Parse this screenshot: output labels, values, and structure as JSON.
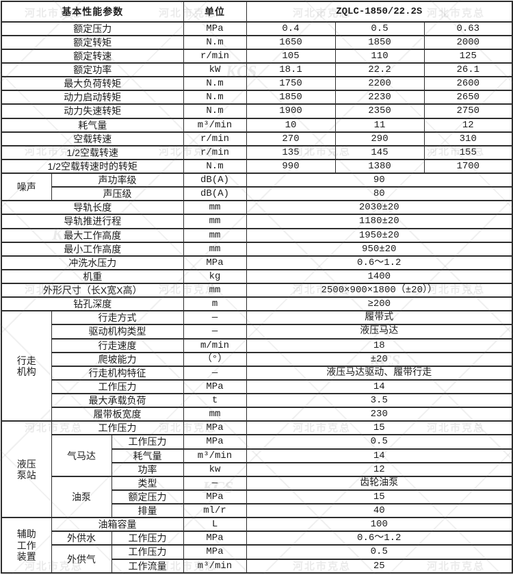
{
  "title": "ZQLC-1850/22.2S",
  "colors": {
    "border": "#2d2d2d",
    "text": "#1c1c1c",
    "watermark_gray": "#8c8c8c",
    "background": "#ffffff"
  },
  "watermark": {
    "text": "河北市克总",
    "logo": "KCS"
  },
  "table": {
    "rows": [
      {
        "cells": [
          {
            "text": "基本性能参数",
            "colspan": 3,
            "kind": "header",
            "name": "col-header-parameters"
          },
          {
            "text": "单位",
            "kind": "header",
            "name": "col-header-unit"
          },
          {
            "text": "ZQLC-1850/22.2S",
            "colspan": 3,
            "kind": "model",
            "name": "model-header"
          }
        ]
      },
      {
        "cells": [
          {
            "text": "额定压力",
            "colspan": 3,
            "kind": "param"
          },
          {
            "text": "MPa",
            "kind": "unit"
          },
          {
            "text": "0.4",
            "kind": "value"
          },
          {
            "text": "0.5",
            "kind": "value"
          },
          {
            "text": "0.63",
            "kind": "value"
          }
        ]
      },
      {
        "cells": [
          {
            "text": "额定转矩",
            "colspan": 3,
            "kind": "param"
          },
          {
            "text": "N.m",
            "kind": "unit"
          },
          {
            "text": "1650",
            "kind": "value"
          },
          {
            "text": "1850",
            "kind": "value"
          },
          {
            "text": "2000",
            "kind": "value"
          }
        ]
      },
      {
        "cells": [
          {
            "text": "额定转速",
            "colspan": 3,
            "kind": "param"
          },
          {
            "text": "r/min",
            "kind": "unit"
          },
          {
            "text": "105",
            "kind": "value"
          },
          {
            "text": "110",
            "kind": "value"
          },
          {
            "text": "125",
            "kind": "value"
          }
        ]
      },
      {
        "cells": [
          {
            "text": "额定功率",
            "colspan": 3,
            "kind": "param"
          },
          {
            "text": "kW",
            "kind": "unit"
          },
          {
            "text": "18.1",
            "kind": "value"
          },
          {
            "text": "22.2",
            "kind": "value"
          },
          {
            "text": "26.1",
            "kind": "value"
          }
        ]
      },
      {
        "cells": [
          {
            "text": "最大负荷转矩",
            "colspan": 3,
            "kind": "param"
          },
          {
            "text": "N.m",
            "kind": "unit"
          },
          {
            "text": "1750",
            "kind": "value"
          },
          {
            "text": "2200",
            "kind": "value"
          },
          {
            "text": "2600",
            "kind": "value"
          }
        ]
      },
      {
        "cells": [
          {
            "text": "动力启动转矩",
            "colspan": 3,
            "kind": "param"
          },
          {
            "text": "N.m",
            "kind": "unit"
          },
          {
            "text": "1850",
            "kind": "value"
          },
          {
            "text": "2230",
            "kind": "value"
          },
          {
            "text": "2650",
            "kind": "value"
          }
        ]
      },
      {
        "cells": [
          {
            "text": "动力失速转矩",
            "colspan": 3,
            "kind": "param"
          },
          {
            "text": "N.m",
            "kind": "unit"
          },
          {
            "text": "1900",
            "kind": "value"
          },
          {
            "text": "2350",
            "kind": "value"
          },
          {
            "text": "2750",
            "kind": "value"
          }
        ]
      },
      {
        "cells": [
          {
            "text": "耗气量",
            "colspan": 3,
            "kind": "param"
          },
          {
            "text": "m³/min",
            "kind": "unit"
          },
          {
            "text": "10",
            "kind": "value"
          },
          {
            "text": "11",
            "kind": "value"
          },
          {
            "text": "12",
            "kind": "value"
          }
        ]
      },
      {
        "cells": [
          {
            "text": "空载转速",
            "colspan": 3,
            "kind": "param"
          },
          {
            "text": "r/min",
            "kind": "unit"
          },
          {
            "text": "270",
            "kind": "value"
          },
          {
            "text": "290",
            "kind": "value"
          },
          {
            "text": "310",
            "kind": "value"
          }
        ]
      },
      {
        "cells": [
          {
            "text": "1/2空载转速",
            "colspan": 3,
            "kind": "param"
          },
          {
            "text": "r/min",
            "kind": "unit"
          },
          {
            "text": "135",
            "kind": "value"
          },
          {
            "text": "145",
            "kind": "value"
          },
          {
            "text": "155",
            "kind": "value"
          }
        ]
      },
      {
        "cells": [
          {
            "text": "1/2空载转速时的转矩",
            "colspan": 3,
            "kind": "param"
          },
          {
            "text": "N.m",
            "kind": "unit"
          },
          {
            "text": "990",
            "kind": "value"
          },
          {
            "text": "1380",
            "kind": "value"
          },
          {
            "text": "1700",
            "kind": "value"
          }
        ]
      },
      {
        "cells": [
          {
            "text": "噪声",
            "rowspan": 2,
            "kind": "group",
            "name": "group-label-noise"
          },
          {
            "text": "声功率级",
            "colspan": 2,
            "kind": "param"
          },
          {
            "text": "dB(A)",
            "kind": "unit"
          },
          {
            "text": "90",
            "colspan": 3,
            "kind": "value"
          }
        ]
      },
      {
        "cells": [
          {
            "text": "声压级",
            "colspan": 2,
            "kind": "param"
          },
          {
            "text": "dB(A)",
            "kind": "unit"
          },
          {
            "text": "80",
            "colspan": 3,
            "kind": "value"
          }
        ]
      },
      {
        "cells": [
          {
            "text": "导轨长度",
            "colspan": 3,
            "kind": "param"
          },
          {
            "text": "mm",
            "kind": "unit"
          },
          {
            "text": "2030±20",
            "colspan": 3,
            "kind": "value"
          }
        ]
      },
      {
        "cells": [
          {
            "text": "导轨推进行程",
            "colspan": 3,
            "kind": "param"
          },
          {
            "text": "mm",
            "kind": "unit"
          },
          {
            "text": "1180±20",
            "colspan": 3,
            "kind": "value"
          }
        ]
      },
      {
        "cells": [
          {
            "text": "最大工作高度",
            "colspan": 3,
            "kind": "param"
          },
          {
            "text": "mm",
            "kind": "unit"
          },
          {
            "text": "1950±20",
            "colspan": 3,
            "kind": "value"
          }
        ]
      },
      {
        "cells": [
          {
            "text": "最小工作高度",
            "colspan": 3,
            "kind": "param"
          },
          {
            "text": "mm",
            "kind": "unit"
          },
          {
            "text": "950±20",
            "colspan": 3,
            "kind": "value"
          }
        ]
      },
      {
        "cells": [
          {
            "text": "冲洗水压力",
            "colspan": 3,
            "kind": "param"
          },
          {
            "text": "MPa",
            "kind": "unit"
          },
          {
            "text": "0.6～1.2",
            "colspan": 3,
            "kind": "value"
          }
        ]
      },
      {
        "cells": [
          {
            "text": "机重",
            "colspan": 3,
            "kind": "param"
          },
          {
            "text": "kg",
            "kind": "unit"
          },
          {
            "text": "1400",
            "colspan": 3,
            "kind": "value"
          }
        ]
      },
      {
        "cells": [
          {
            "text": "外形尺寸（长X宽X高）",
            "colspan": 3,
            "kind": "param"
          },
          {
            "text": "mm",
            "kind": "unit"
          },
          {
            "text": "2500×900×1800（±20））",
            "colspan": 3,
            "kind": "value"
          }
        ]
      },
      {
        "cells": [
          {
            "text": "钻孔深度",
            "colspan": 3,
            "kind": "param"
          },
          {
            "text": "m",
            "kind": "unit"
          },
          {
            "text": "≥200",
            "colspan": 3,
            "kind": "value"
          }
        ]
      },
      {
        "cells": [
          {
            "text": "行走\n机构",
            "rowspan": 8,
            "kind": "group",
            "name": "group-label-travel-mechanism"
          },
          {
            "text": "行走方式",
            "colspan": 2,
            "kind": "param"
          },
          {
            "text": "—",
            "kind": "unit"
          },
          {
            "text": "履带式",
            "colspan": 3,
            "kind": "value"
          }
        ]
      },
      {
        "cells": [
          {
            "text": "驱动机构类型",
            "colspan": 2,
            "kind": "param"
          },
          {
            "text": "—",
            "kind": "unit"
          },
          {
            "text": "液压马达",
            "colspan": 3,
            "kind": "value"
          }
        ]
      },
      {
        "cells": [
          {
            "text": "行走速度",
            "colspan": 2,
            "kind": "param"
          },
          {
            "text": "m/min",
            "kind": "unit"
          },
          {
            "text": "18",
            "colspan": 3,
            "kind": "value"
          }
        ]
      },
      {
        "cells": [
          {
            "text": "爬坡能力",
            "colspan": 2,
            "kind": "param"
          },
          {
            "text": "（°）",
            "kind": "unit"
          },
          {
            "text": "±20",
            "colspan": 3,
            "kind": "value"
          }
        ]
      },
      {
        "cells": [
          {
            "text": "行走机构特征",
            "colspan": 2,
            "kind": "param"
          },
          {
            "text": "—",
            "kind": "unit"
          },
          {
            "text": "液压马达驱动、履带行走",
            "colspan": 3,
            "kind": "value"
          }
        ]
      },
      {
        "cells": [
          {
            "text": "工作压力",
            "colspan": 2,
            "kind": "param"
          },
          {
            "text": "MPa",
            "kind": "unit"
          },
          {
            "text": "14",
            "colspan": 3,
            "kind": "value"
          }
        ]
      },
      {
        "cells": [
          {
            "text": "最大承载负荷",
            "colspan": 2,
            "kind": "param"
          },
          {
            "text": "t",
            "kind": "unit"
          },
          {
            "text": "3.5",
            "colspan": 3,
            "kind": "value"
          }
        ]
      },
      {
        "cells": [
          {
            "text": "履带板宽度",
            "colspan": 2,
            "kind": "param"
          },
          {
            "text": "mm",
            "kind": "unit"
          },
          {
            "text": "230",
            "colspan": 3,
            "kind": "value"
          }
        ]
      },
      {
        "cells": [
          {
            "text": "液压\n泵站",
            "rowspan": 7,
            "kind": "group",
            "name": "group-label-hydraulic-pump-station"
          },
          {
            "text": "工作压力",
            "colspan": 2,
            "kind": "param"
          },
          {
            "text": "MPa",
            "kind": "unit"
          },
          {
            "text": "15",
            "colspan": 3,
            "kind": "value"
          }
        ]
      },
      {
        "cells": [
          {
            "text": "气马达",
            "rowspan": 3,
            "kind": "subgroup",
            "name": "subgroup-label-air-motor"
          },
          {
            "text": "工作压力",
            "kind": "param"
          },
          {
            "text": "MPa",
            "kind": "unit"
          },
          {
            "text": "0.5",
            "colspan": 3,
            "kind": "value"
          }
        ]
      },
      {
        "cells": [
          {
            "text": "耗气量",
            "kind": "param"
          },
          {
            "text": "m³/min",
            "kind": "unit"
          },
          {
            "text": "14",
            "colspan": 3,
            "kind": "value"
          }
        ]
      },
      {
        "cells": [
          {
            "text": "功率",
            "kind": "param"
          },
          {
            "text": "kw",
            "kind": "unit"
          },
          {
            "text": "12",
            "colspan": 3,
            "kind": "value"
          }
        ]
      },
      {
        "cells": [
          {
            "text": "油泵",
            "rowspan": 3,
            "kind": "subgroup",
            "name": "subgroup-label-oil-pump"
          },
          {
            "text": "类型",
            "kind": "param"
          },
          {
            "text": "—",
            "kind": "unit"
          },
          {
            "text": "齿轮油泵",
            "colspan": 3,
            "kind": "value"
          }
        ]
      },
      {
        "cells": [
          {
            "text": "额定压力",
            "kind": "param"
          },
          {
            "text": "MPa",
            "kind": "unit"
          },
          {
            "text": "15",
            "colspan": 3,
            "kind": "value"
          }
        ]
      },
      {
        "cells": [
          {
            "text": "排量",
            "kind": "param"
          },
          {
            "text": "ml/r",
            "kind": "unit"
          },
          {
            "text": "40",
            "colspan": 3,
            "kind": "value"
          }
        ]
      },
      {
        "cells": [
          {
            "text": "辅助\n工作\n装置",
            "rowspan": 4,
            "kind": "group",
            "name": "group-label-auxiliary-device"
          },
          {
            "text": "油箱容量",
            "colspan": 2,
            "kind": "param"
          },
          {
            "text": "L",
            "kind": "unit"
          },
          {
            "text": "100",
            "colspan": 3,
            "kind": "value"
          }
        ]
      },
      {
        "cells": [
          {
            "text": "外供水",
            "kind": "subgroup",
            "name": "subgroup-label-external-water"
          },
          {
            "text": "工作压力",
            "kind": "param"
          },
          {
            "text": "MPa",
            "kind": "unit"
          },
          {
            "text": "0.6～1.2",
            "colspan": 3,
            "kind": "value"
          }
        ]
      },
      {
        "cells": [
          {
            "text": "外供气",
            "rowspan": 2,
            "kind": "subgroup",
            "name": "subgroup-label-external-air"
          },
          {
            "text": "工作压力",
            "kind": "param"
          },
          {
            "text": "MPa",
            "kind": "unit"
          },
          {
            "text": "0.5",
            "colspan": 3,
            "kind": "value"
          }
        ]
      },
      {
        "cells": [
          {
            "text": "工作流量",
            "kind": "param"
          },
          {
            "text": "m³/min",
            "kind": "unit"
          },
          {
            "text": "25",
            "colspan": 3,
            "kind": "value"
          }
        ]
      }
    ]
  }
}
